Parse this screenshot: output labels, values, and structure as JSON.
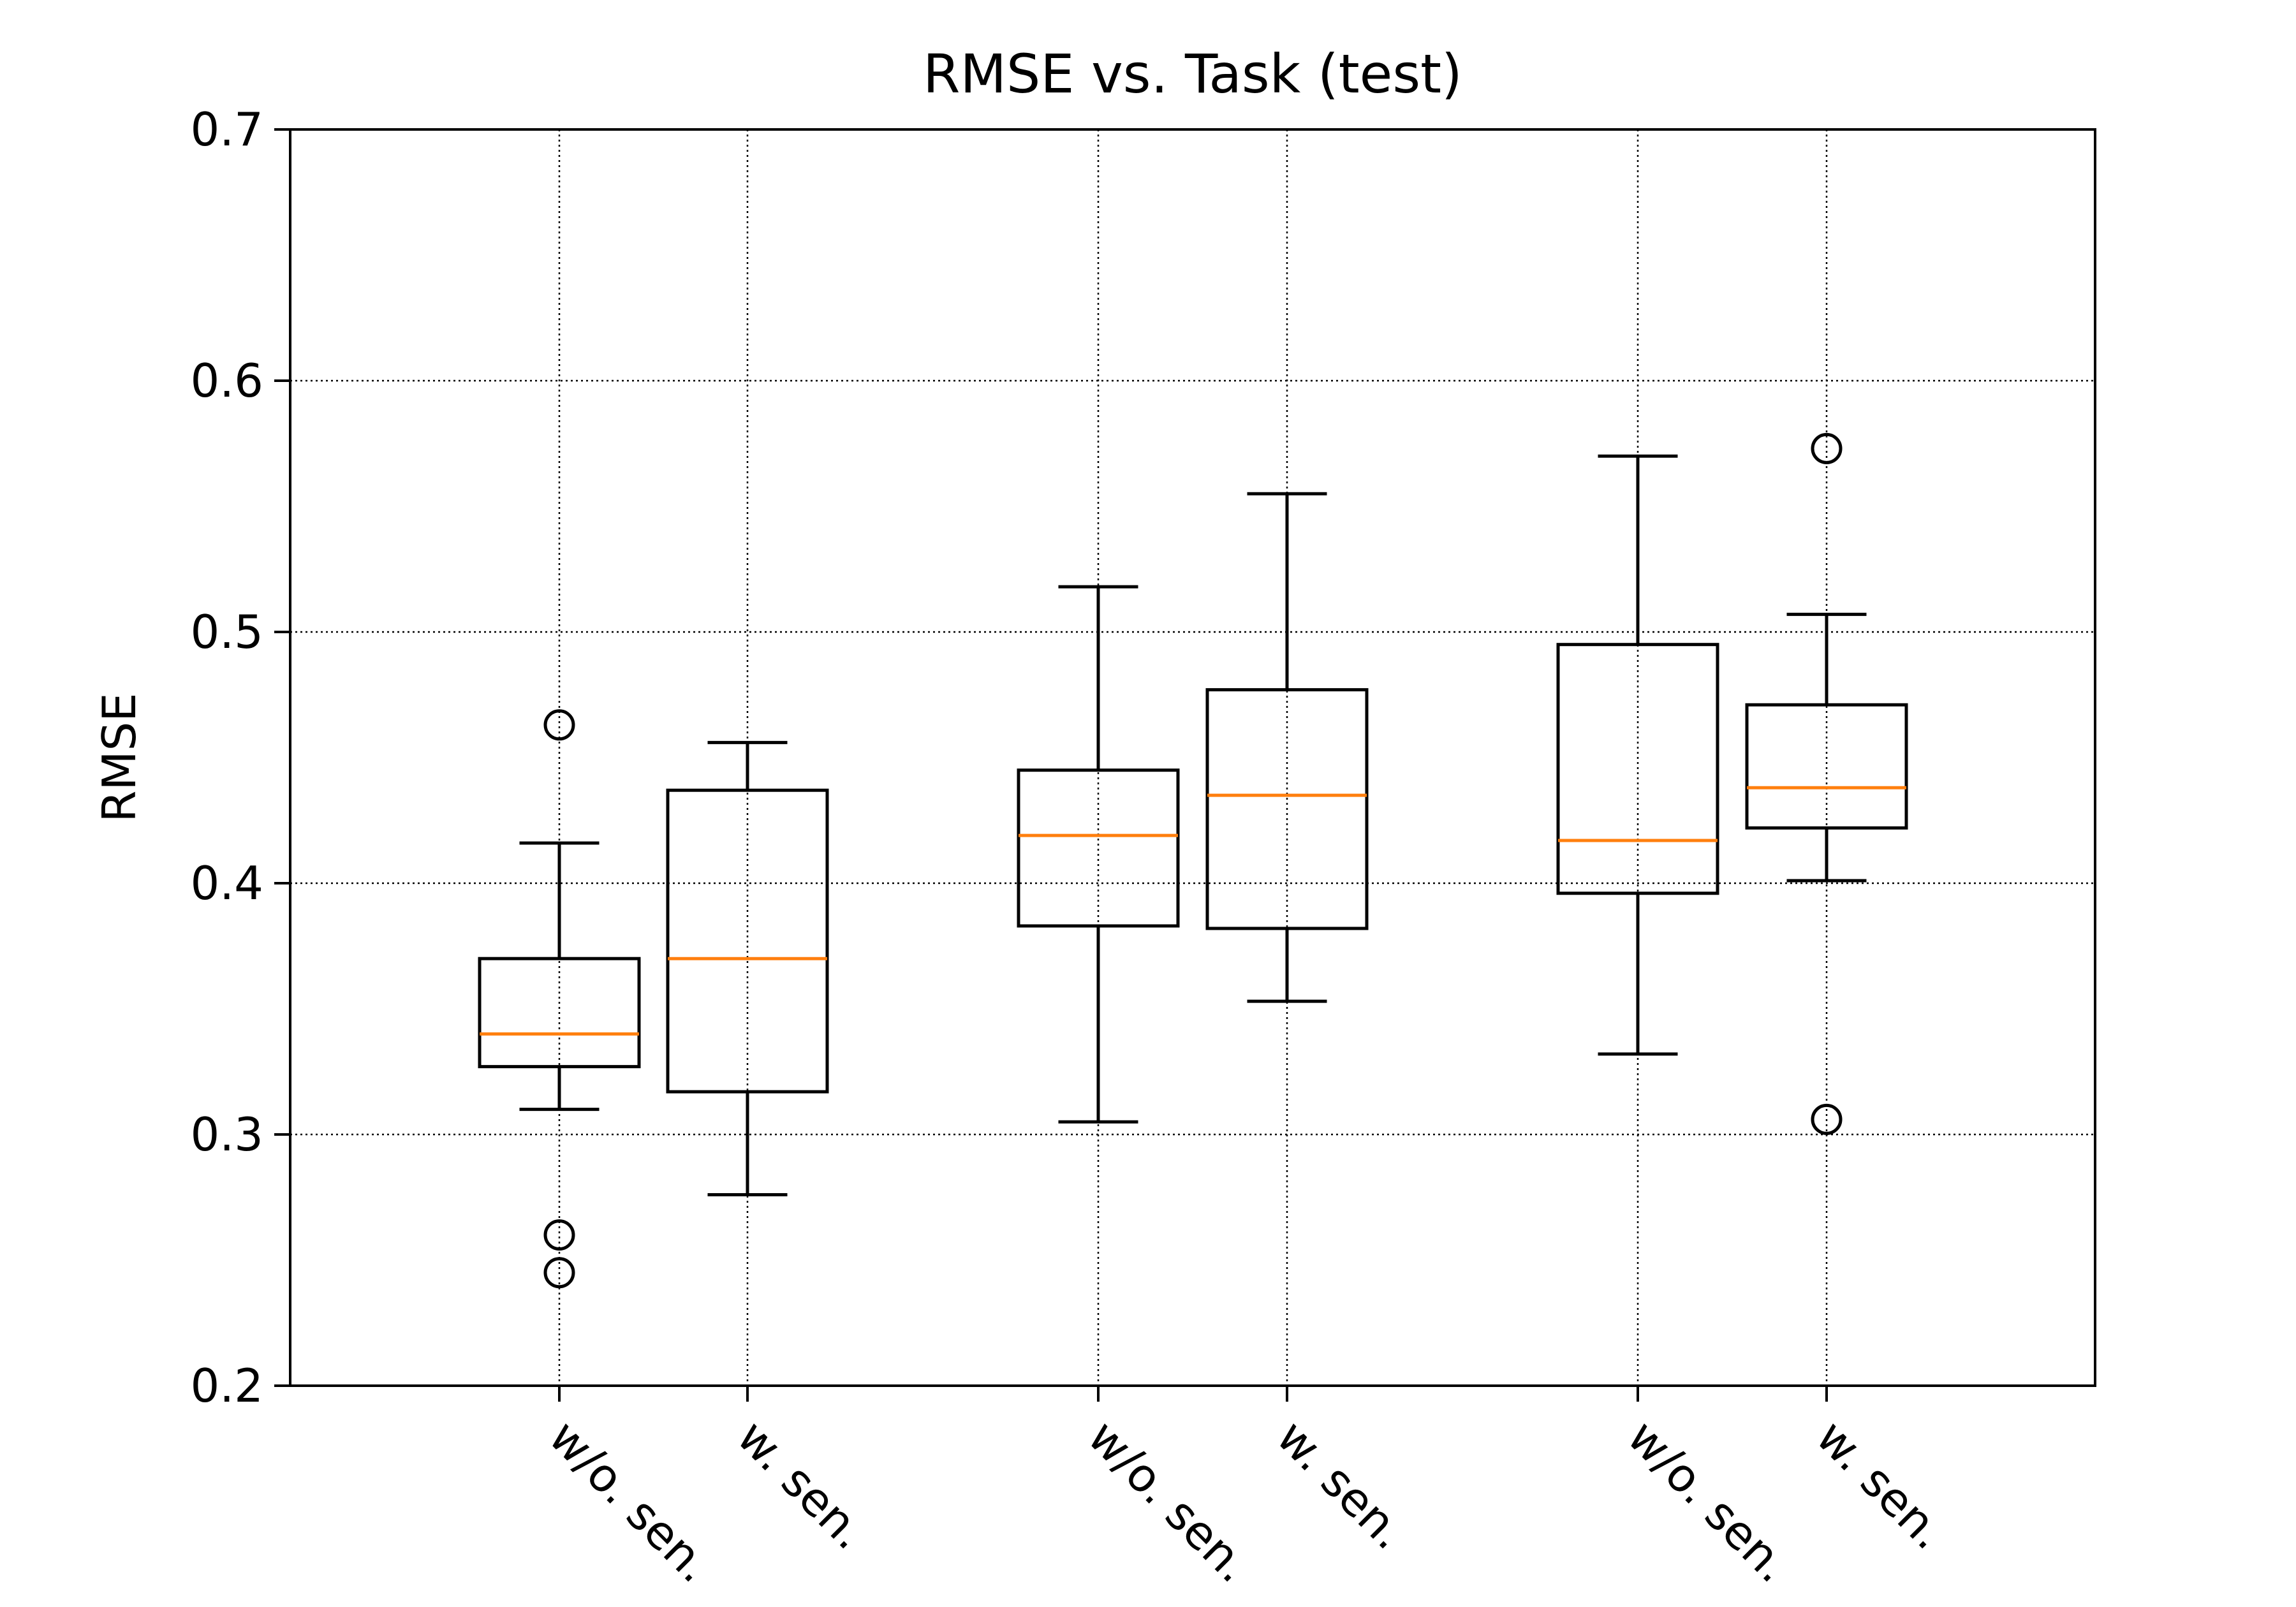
{
  "chart_data": {
    "type": "boxplot",
    "title": "RMSE vs. Task (test)",
    "xlabel": "",
    "ylabel": "RMSE",
    "ylim": [
      0.2,
      0.7
    ],
    "yticks": [
      "0.2",
      "0.3",
      "0.4",
      "0.5",
      "0.6",
      "0.7"
    ],
    "grid": true,
    "categories": [
      "w/o. sen.",
      "w. sen.",
      "w/o. sen.",
      "w. sen.",
      "w/o. sen.",
      "w. sen."
    ],
    "boxes": [
      {
        "label": "w/o. sen.",
        "whisker_low": 0.31,
        "q1": 0.327,
        "median": 0.34,
        "q3": 0.37,
        "whisker_high": 0.416,
        "outliers": [
          0.463,
          0.26,
          0.245
        ]
      },
      {
        "label": "w. sen.",
        "whisker_low": 0.276,
        "q1": 0.317,
        "median": 0.37,
        "q3": 0.437,
        "whisker_high": 0.456,
        "outliers": []
      },
      {
        "label": "w/o. sen.",
        "whisker_low": 0.305,
        "q1": 0.383,
        "median": 0.419,
        "q3": 0.445,
        "whisker_high": 0.518,
        "outliers": []
      },
      {
        "label": "w. sen.",
        "whisker_low": 0.353,
        "q1": 0.382,
        "median": 0.435,
        "q3": 0.477,
        "whisker_high": 0.555,
        "outliers": []
      },
      {
        "label": "w/o. sen.",
        "whisker_low": 0.332,
        "q1": 0.396,
        "median": 0.417,
        "q3": 0.495,
        "whisker_high": 0.57,
        "outliers": []
      },
      {
        "label": "w. sen.",
        "whisker_low": 0.401,
        "q1": 0.422,
        "median": 0.438,
        "q3": 0.471,
        "whisker_high": 0.507,
        "outliers": [
          0.573,
          0.306
        ]
      }
    ],
    "colors": {
      "box": "#000000",
      "median": "#ff7f0e",
      "grid": "#000000"
    }
  }
}
